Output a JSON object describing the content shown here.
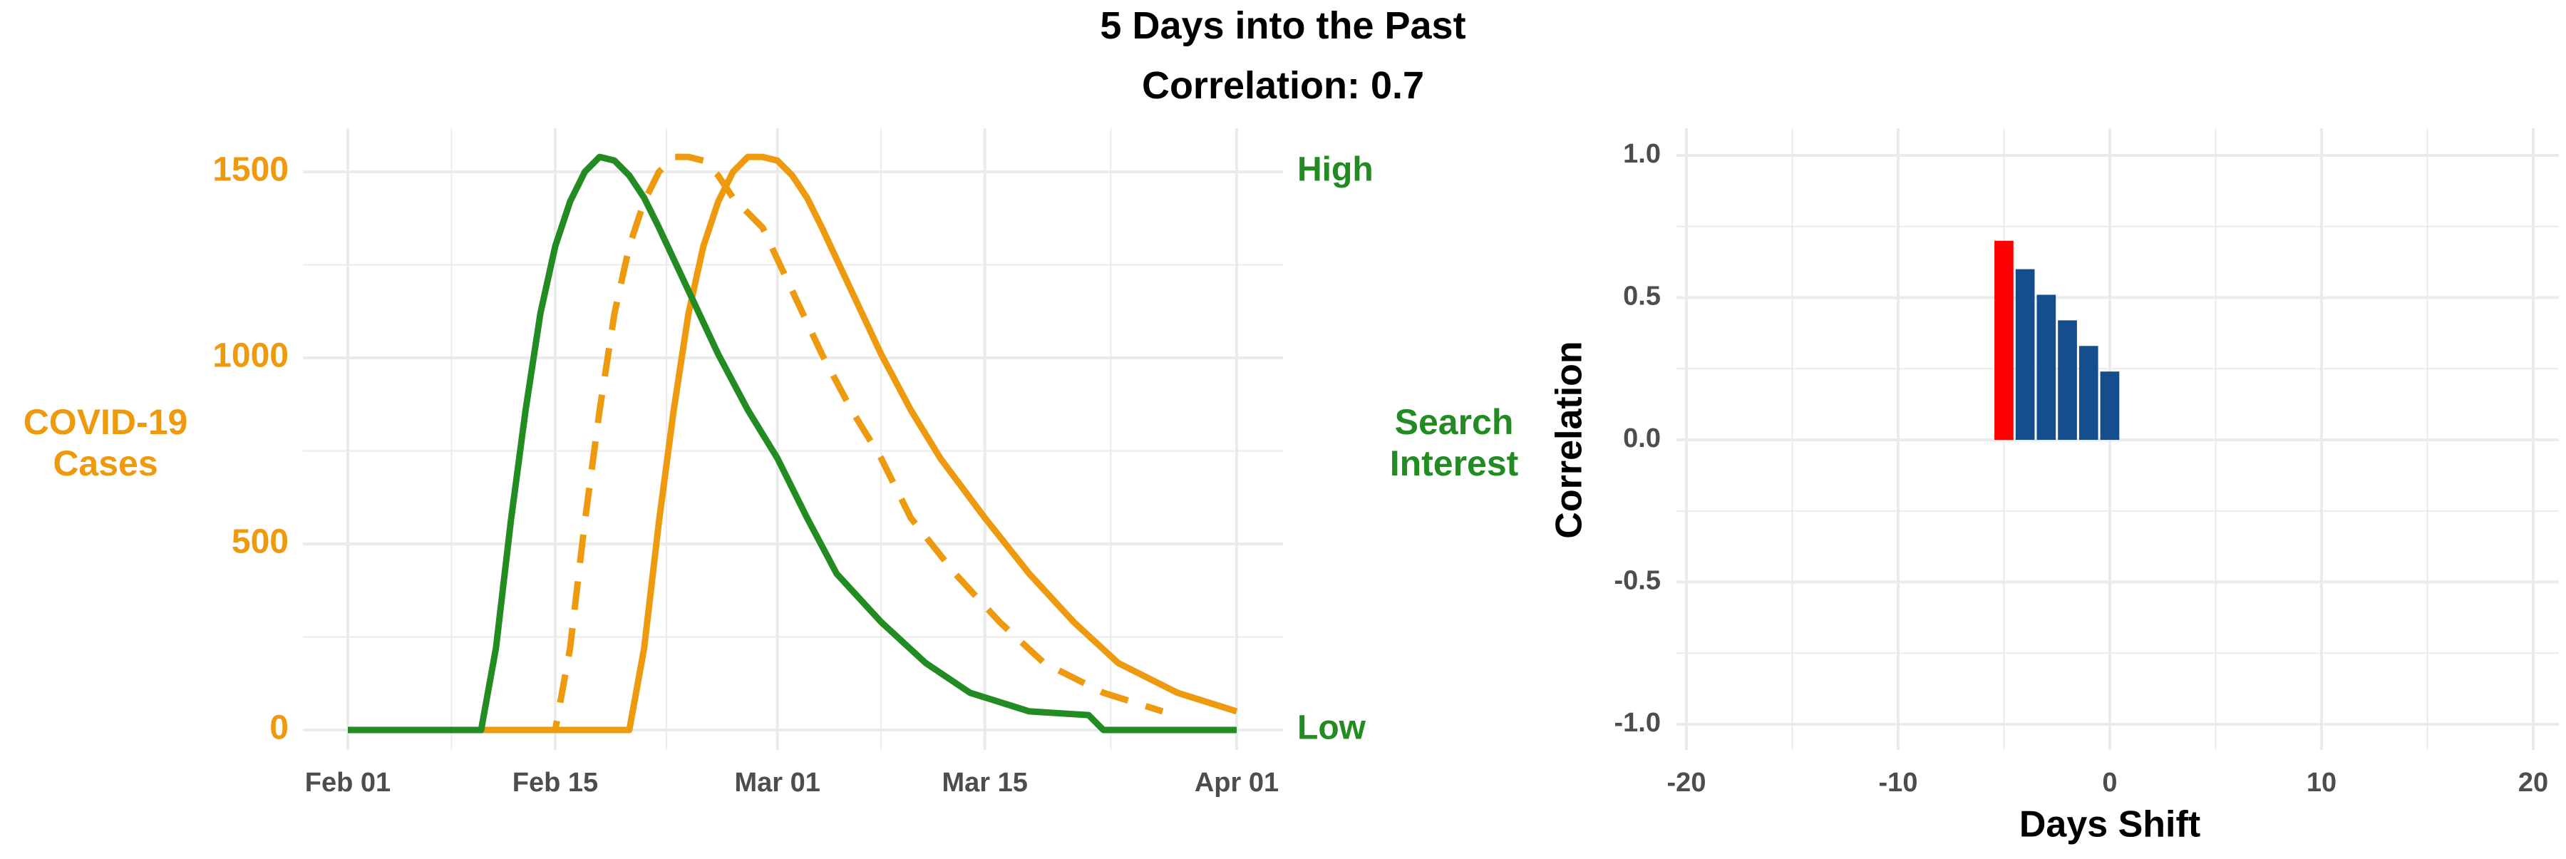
{
  "header": {
    "title": "5 Days into the Past",
    "subtitle": "Correlation: 0.7"
  },
  "colors": {
    "cases": "#EE9A0E",
    "search": "#228B22",
    "bar_default": "#154E8C",
    "bar_highlight": "#FF0000",
    "grid": "#EBEBEB",
    "axis_text": "#4D4D4D",
    "title_text": "#000000"
  },
  "chart_data": [
    {
      "type": "line",
      "x_type": "date",
      "title": "",
      "ylabel_left": "COVID-19\nCases",
      "ylabel_right": "Search\nInterest",
      "xlim": [
        "2020-02-01",
        "2020-04-01"
      ],
      "ylim": [
        0,
        1550
      ],
      "x_ticks": [
        "2020-02-01",
        "2020-02-15",
        "2020-03-01",
        "2020-03-15",
        "2020-04-01"
      ],
      "x_tick_labels": [
        "Feb 01",
        "Feb 15",
        "Mar 01",
        "Mar 15",
        "Apr 01"
      ],
      "y_ticks": [
        0,
        500,
        1000,
        1500
      ],
      "y_tick_labels": [
        "0",
        "500",
        "1000",
        "1500"
      ],
      "right_tick_labels": [
        {
          "label": "High",
          "at": 1500
        },
        {
          "label": "Low",
          "at": 0
        }
      ],
      "grid": true,
      "legend": "none",
      "series": [
        {
          "style": "solid",
          "color": "#EE9A0E",
          "x": [
            "2020-02-01",
            "2020-02-19",
            "2020-02-20",
            "2020-02-21",
            "2020-02-22",
            "2020-02-23",
            "2020-02-24",
            "2020-02-25",
            "2020-02-26",
            "2020-02-27",
            "2020-02-28",
            "2020-02-29",
            "2020-03-01",
            "2020-03-02",
            "2020-03-03",
            "2020-03-04",
            "2020-03-06",
            "2020-03-08",
            "2020-03-10",
            "2020-03-12",
            "2020-03-15",
            "2020-03-18",
            "2020-03-21",
            "2020-03-24",
            "2020-03-28",
            "2020-04-01"
          ],
          "y": [
            0,
            0,
            0,
            220,
            560,
            860,
            1120,
            1300,
            1420,
            1500,
            1540,
            1540,
            1530,
            1490,
            1430,
            1350,
            1180,
            1010,
            860,
            730,
            570,
            420,
            290,
            180,
            100,
            50
          ]
        },
        {
          "style": "dashed",
          "color": "#EE9A0E",
          "x": [
            "2020-02-01",
            "2020-02-14",
            "2020-02-15",
            "2020-02-16",
            "2020-02-17",
            "2020-02-18",
            "2020-02-19",
            "2020-02-20",
            "2020-02-21",
            "2020-02-22",
            "2020-02-23",
            "2020-02-24",
            "2020-02-25",
            "2020-02-26",
            "2020-02-27",
            "2020-02-29",
            "2020-03-02",
            "2020-03-04",
            "2020-03-06",
            "2020-03-08",
            "2020-03-10",
            "2020-03-13",
            "2020-03-16",
            "2020-03-19",
            "2020-03-23",
            "2020-03-27"
          ],
          "y": [
            0,
            0,
            0,
            220,
            560,
            860,
            1120,
            1300,
            1420,
            1500,
            1540,
            1540,
            1530,
            1490,
            1430,
            1350,
            1180,
            1010,
            860,
            730,
            570,
            420,
            290,
            180,
            100,
            50
          ]
        },
        {
          "style": "solid",
          "color": "#228B22",
          "x": [
            "2020-02-01",
            "2020-02-09",
            "2020-02-10",
            "2020-02-11",
            "2020-02-12",
            "2020-02-13",
            "2020-02-14",
            "2020-02-15",
            "2020-02-16",
            "2020-02-17",
            "2020-02-18",
            "2020-02-19",
            "2020-02-20",
            "2020-02-21",
            "2020-02-22",
            "2020-02-24",
            "2020-02-26",
            "2020-02-28",
            "2020-03-01",
            "2020-03-03",
            "2020-03-05",
            "2020-03-08",
            "2020-03-11",
            "2020-03-14",
            "2020-03-18",
            "2020-03-22",
            "2020-03-23",
            "2020-04-01"
          ],
          "y": [
            0,
            0,
            0,
            220,
            560,
            860,
            1120,
            1300,
            1420,
            1500,
            1540,
            1530,
            1490,
            1430,
            1350,
            1180,
            1010,
            860,
            730,
            570,
            420,
            290,
            180,
            100,
            50,
            40,
            0,
            0
          ]
        }
      ]
    },
    {
      "type": "bar",
      "title": "",
      "xlabel": "Days Shift",
      "ylabel": "Correlation",
      "xlim": [
        -20.5,
        20.5
      ],
      "ylim": [
        -1.0,
        1.0
      ],
      "x_ticks": [
        -20,
        -10,
        0,
        10,
        20
      ],
      "x_tick_labels": [
        "-20",
        "-10",
        "0",
        "10",
        "20"
      ],
      "y_ticks": [
        -1.0,
        -0.5,
        0.0,
        0.5,
        1.0
      ],
      "y_tick_labels": [
        "-1.0",
        "-0.5",
        "0.0",
        "0.5",
        "1.0"
      ],
      "grid": true,
      "legend": "none",
      "x": [
        -5,
        -4,
        -3,
        -2,
        -1,
        0
      ],
      "values": [
        0.7,
        0.6,
        0.51,
        0.42,
        0.33,
        0.24
      ],
      "highlight_x": -5
    }
  ]
}
